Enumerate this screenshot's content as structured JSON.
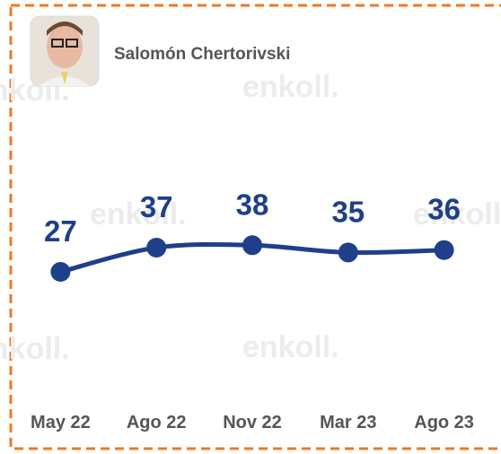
{
  "chart_data": {
    "type": "line",
    "title": "Salomón Chertorivski",
    "watermark": "enkoll.",
    "categories": [
      "May 22",
      "Ago 22",
      "Nov 22",
      "Mar 23",
      "Ago 23"
    ],
    "values": [
      27,
      37,
      38,
      35,
      36
    ],
    "color": "#1f3f8a"
  }
}
